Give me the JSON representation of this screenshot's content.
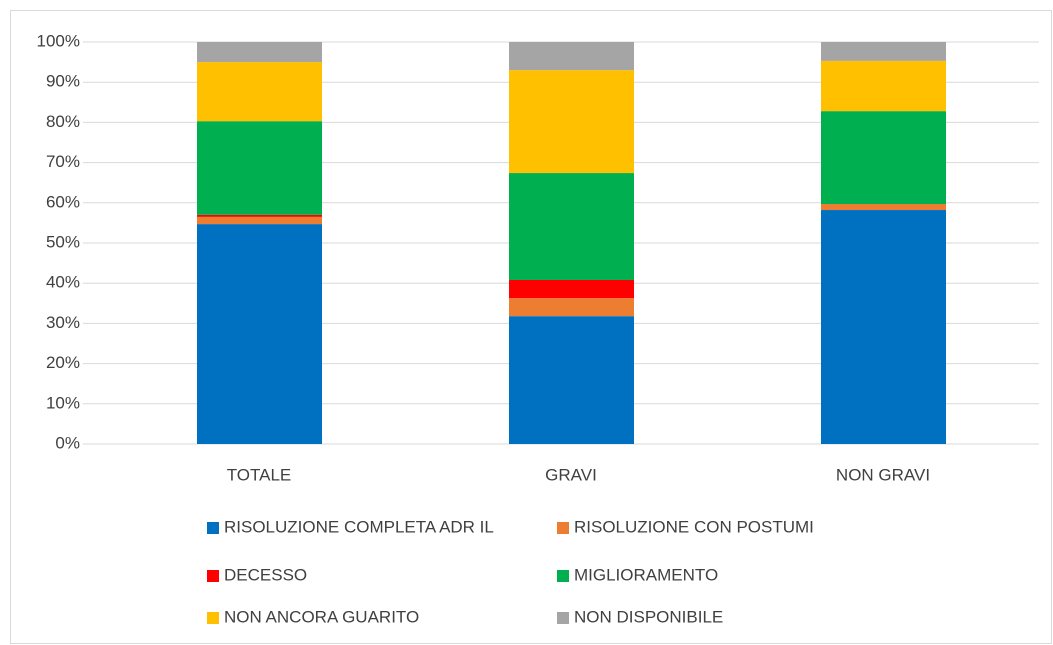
{
  "chart_data": {
    "type": "stacked_bar",
    "categories": [
      "TOTALE",
      "GRAVI",
      "NON GRAVI"
    ],
    "series": [
      {
        "name": "RISOLUZIONE COMPLETA ADR IL",
        "color": "#0070c0",
        "values": [
          54.7,
          31.8,
          58.2
        ]
      },
      {
        "name": "RISOLUZIONE CON POSTUMI",
        "color": "#ed7d31",
        "values": [
          1.8,
          4.5,
          1.5
        ]
      },
      {
        "name": "DECESSO",
        "color": "#ff0000",
        "values": [
          0.5,
          4.5,
          0
        ]
      },
      {
        "name": "MIGLIORAMENTO",
        "color": "#00b050",
        "values": [
          23.3,
          26.6,
          23.1
        ]
      },
      {
        "name": "NON ANCORA GUARITO",
        "color": "#ffc000",
        "values": [
          14.7,
          25.6,
          12.5
        ]
      },
      {
        "name": "NON DISPONIBILE",
        "color": "#a5a5a5",
        "values": [
          5.0,
          7.0,
          4.7
        ]
      }
    ],
    "ylim": [
      0,
      100
    ],
    "yticks": [
      {
        "value": 0,
        "label": "0%"
      },
      {
        "value": 10,
        "label": "10%"
      },
      {
        "value": 20,
        "label": "20%"
      },
      {
        "value": 30,
        "label": "30%"
      },
      {
        "value": 40,
        "label": "40%"
      },
      {
        "value": 50,
        "label": "50%"
      },
      {
        "value": 60,
        "label": "60%"
      },
      {
        "value": 70,
        "label": "70%"
      },
      {
        "value": 80,
        "label": "80%"
      },
      {
        "value": 90,
        "label": "90%"
      },
      {
        "value": 100,
        "label": "100%"
      }
    ],
    "grid": true,
    "legend": "bottom"
  }
}
